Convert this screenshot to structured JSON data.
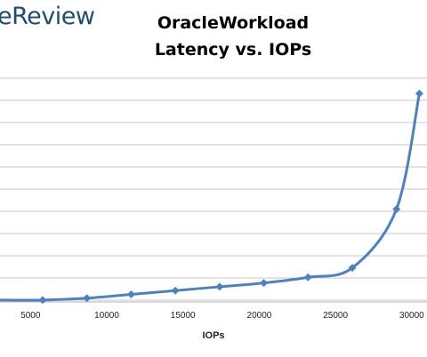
{
  "brand": {
    "text": "eReview"
  },
  "chart_data": {
    "type": "line",
    "title": "OracleWorkload",
    "subtitle": "Latency vs. IOPs",
    "xlabel": "IOPs",
    "ylabel": "",
    "x_ticks": [
      "5000",
      "10000",
      "15000",
      "20000",
      "25000",
      "30000"
    ],
    "x_tick_values": [
      5000,
      10000,
      15000,
      20000,
      25000,
      30000
    ],
    "xlim": [
      3000,
      31000
    ],
    "ylim": [
      0,
      12
    ],
    "grid": true,
    "series": [
      {
        "color": "#4f81bd",
        "x": [
          2800,
          5800,
          8700,
          11600,
          14500,
          17400,
          20300,
          23200,
          26100,
          29000,
          30500
        ],
        "y": [
          0.1,
          0.1,
          0.2,
          0.4,
          0.6,
          0.8,
          1.0,
          1.3,
          1.8,
          4.9,
          11.0
        ]
      }
    ]
  }
}
